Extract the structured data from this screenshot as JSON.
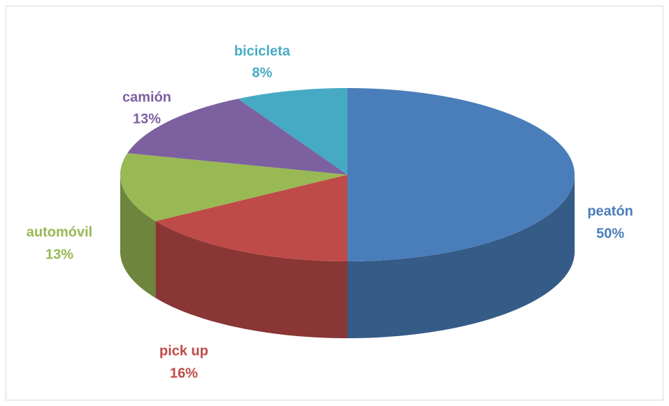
{
  "chart_data": {
    "type": "pie",
    "categories": [
      "peatón",
      "pick up",
      "automóvil",
      "camión",
      "bicicleta"
    ],
    "values": [
      50,
      16,
      13,
      13,
      8
    ],
    "value_labels": [
      "50%",
      "16%",
      "13%",
      "13%",
      "8%"
    ],
    "colors": [
      "#4a7ebb",
      "#be4b48",
      "#98b954",
      "#7d60a0",
      "#46aac5"
    ]
  }
}
